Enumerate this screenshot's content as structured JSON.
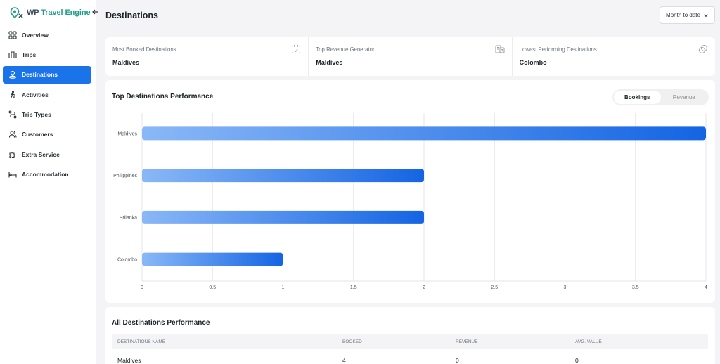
{
  "brand": {
    "name_part1": "WP ",
    "name_part2": "Travel Engine"
  },
  "sidebar": {
    "items": [
      {
        "label": "Overview",
        "icon": "grid-icon",
        "active": false
      },
      {
        "label": "Trips",
        "icon": "suitcase-icon",
        "active": false
      },
      {
        "label": "Destinations",
        "icon": "pin-icon",
        "active": true
      },
      {
        "label": "Activities",
        "icon": "hiker-icon",
        "active": false
      },
      {
        "label": "Trip Types",
        "icon": "route-icon",
        "active": false
      },
      {
        "label": "Customers",
        "icon": "users-icon",
        "active": false
      },
      {
        "label": "Extra Service",
        "icon": "puzzle-icon",
        "active": false
      },
      {
        "label": "Accommodation",
        "icon": "bed-icon",
        "active": false
      }
    ]
  },
  "header": {
    "title": "Destinations",
    "date_filter": "Month to date"
  },
  "stats": [
    {
      "label": "Most Booked Destinations",
      "value": "Maldives",
      "icon": "calendar-check-icon"
    },
    {
      "label": "Top Revenue Generator",
      "value": "Maldives",
      "icon": "money-icon"
    },
    {
      "label": "Lowest Performing Destinations",
      "value": "Colombo",
      "icon": "coins-icon"
    }
  ],
  "chart_section": {
    "title": "Top Destinations Performance",
    "toggle": {
      "bookings": "Bookings",
      "revenue": "Revenue",
      "selected": "bookings"
    }
  },
  "chart_data": {
    "type": "bar",
    "orientation": "horizontal",
    "categories": [
      "Maldives",
      "Philippines",
      "Srilanka",
      "Colombo"
    ],
    "values": [
      4,
      2,
      2,
      1
    ],
    "xlim": [
      0,
      4
    ],
    "xticks": [
      "0",
      "0.5",
      "1",
      "1.5",
      "2",
      "2.5",
      "3",
      "3.5",
      "4"
    ],
    "grid": true,
    "colors": {
      "start": "#8ab8f7",
      "end": "#1464e3"
    }
  },
  "table": {
    "title": "All Destinations Performance",
    "columns": [
      "DESTINATIONS NAME",
      "BOOKED",
      "REVENUE",
      "AVG. VALUE"
    ],
    "rows": [
      [
        "Maldives",
        "4",
        "0",
        "0"
      ]
    ]
  }
}
